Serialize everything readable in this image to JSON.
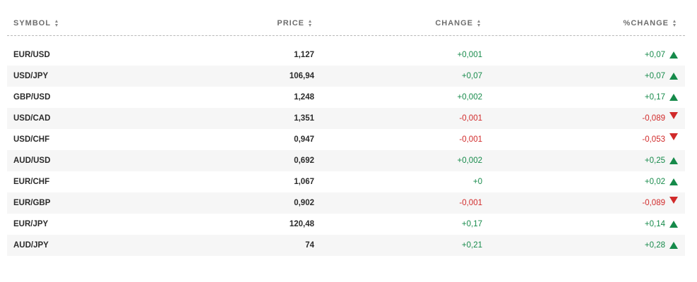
{
  "header": {
    "symbol": "SYMBOL",
    "price": "PRICE",
    "change": "CHANGE",
    "pct_change": "%CHANGE"
  },
  "colors": {
    "positive": "#168a4a",
    "negative": "#d12a2a"
  },
  "rows": [
    {
      "symbol": "EUR/USD",
      "price": "1,127",
      "change": "+0,001",
      "pct": "+0,07",
      "dir": "up"
    },
    {
      "symbol": "USD/JPY",
      "price": "106,94",
      "change": "+0,07",
      "pct": "+0,07",
      "dir": "up"
    },
    {
      "symbol": "GBP/USD",
      "price": "1,248",
      "change": "+0,002",
      "pct": "+0,17",
      "dir": "up"
    },
    {
      "symbol": "USD/CAD",
      "price": "1,351",
      "change": "-0,001",
      "pct": "-0,089",
      "dir": "down"
    },
    {
      "symbol": "USD/CHF",
      "price": "0,947",
      "change": "-0,001",
      "pct": "-0,053",
      "dir": "down"
    },
    {
      "symbol": "AUD/USD",
      "price": "0,692",
      "change": "+0,002",
      "pct": "+0,25",
      "dir": "up"
    },
    {
      "symbol": "EUR/CHF",
      "price": "1,067",
      "change": "+0",
      "pct": "+0,02",
      "dir": "up"
    },
    {
      "symbol": "EUR/GBP",
      "price": "0,902",
      "change": "-0,001",
      "pct": "-0,089",
      "dir": "down"
    },
    {
      "symbol": "EUR/JPY",
      "price": "120,48",
      "change": "+0,17",
      "pct": "+0,14",
      "dir": "up"
    },
    {
      "symbol": "AUD/JPY",
      "price": "74",
      "change": "+0,21",
      "pct": "+0,28",
      "dir": "up"
    }
  ]
}
